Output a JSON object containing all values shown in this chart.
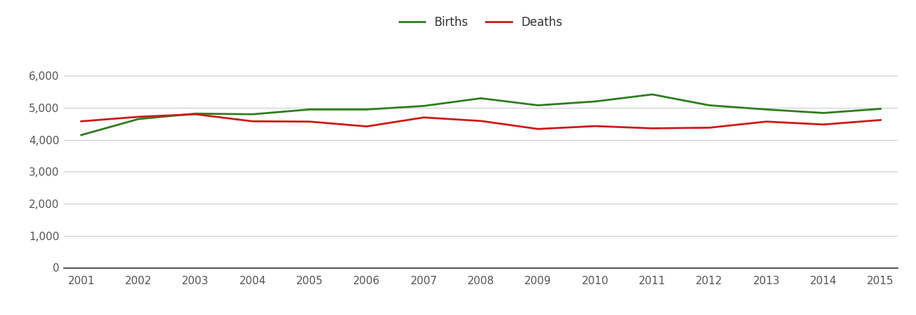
{
  "years": [
    2001,
    2002,
    2003,
    2004,
    2005,
    2006,
    2007,
    2008,
    2009,
    2010,
    2011,
    2012,
    2013,
    2014,
    2015
  ],
  "births": [
    4150,
    4650,
    4820,
    4800,
    4950,
    4950,
    5060,
    5300,
    5080,
    5200,
    5420,
    5080,
    4950,
    4840,
    4970
  ],
  "deaths": [
    4580,
    4720,
    4800,
    4580,
    4570,
    4420,
    4700,
    4590,
    4340,
    4430,
    4360,
    4380,
    4570,
    4480,
    4620
  ],
  "births_color": "#2e7d1e",
  "deaths_color": "#cc1a1a",
  "line_width": 2.0,
  "legend_labels": [
    "Births",
    "Deaths"
  ],
  "ylim": [
    0,
    6600
  ],
  "yticks": [
    0,
    1000,
    2000,
    3000,
    4000,
    5000,
    6000
  ],
  "ytick_labels": [
    "0",
    "1,000",
    "2,000",
    "3,000",
    "4,000",
    "5,000",
    "6,000"
  ],
  "grid_color": "#cccccc",
  "background_color": "#ffffff",
  "spine_color": "#333333"
}
